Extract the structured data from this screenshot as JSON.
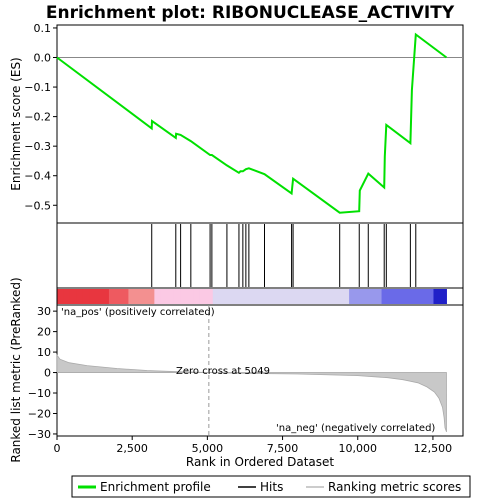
{
  "chart_data": {
    "type": "line",
    "title": "Enrichment plot: RIBONUCLEASE_ACTIVITY",
    "top_panel": {
      "ylabel": "Enrichment score (ES)",
      "ylim": [
        -0.56,
        0.11
      ],
      "yticks": [
        0.1,
        0.0,
        -0.1,
        -0.2,
        -0.3,
        -0.4,
        -0.5
      ],
      "ytick_labels": [
        "0.1",
        "0.0",
        "−0.1",
        "−0.2",
        "−0.3",
        "−0.4",
        "−0.5"
      ],
      "series": [
        {
          "name": "Enrichment profile",
          "color": "#00e000",
          "x": [
            0,
            3150,
            3160,
            3950,
            3960,
            4110,
            4450,
            5090,
            5150,
            5650,
            6050,
            6100,
            6180,
            6280,
            6380,
            6900,
            7800,
            7850,
            9400,
            10050,
            10070,
            10350,
            10880,
            10900,
            10950,
            11750,
            11800,
            11930,
            12950
          ],
          "y": [
            0.0,
            -0.24,
            -0.215,
            -0.272,
            -0.258,
            -0.262,
            -0.283,
            -0.33,
            -0.33,
            -0.365,
            -0.39,
            -0.385,
            -0.385,
            -0.378,
            -0.375,
            -0.395,
            -0.46,
            -0.41,
            -0.525,
            -0.52,
            -0.45,
            -0.393,
            -0.44,
            -0.335,
            -0.228,
            -0.29,
            -0.11,
            0.078,
            0.0
          ]
        }
      ]
    },
    "hits": [
      3150,
      3950,
      4110,
      4450,
      5090,
      5150,
      5650,
      6050,
      6180,
      6280,
      6380,
      6900,
      7800,
      7850,
      9400,
      10050,
      10350,
      10880,
      10950,
      11750,
      11930
    ],
    "hits_label": "Hits",
    "bottom_panel": {
      "ylabel": "Ranked list metric (PreRanked)",
      "xlabel": "Rank in Ordered Dataset",
      "xlim": [
        0,
        13500
      ],
      "ylim": [
        -31,
        33
      ],
      "xticks": [
        0,
        2500,
        5000,
        7500,
        10000,
        12500
      ],
      "xtick_labels": [
        "0",
        "2,500",
        "5,000",
        "7,500",
        "10,000",
        "12,500"
      ],
      "yticks": [
        30,
        20,
        10,
        0,
        -10,
        -20,
        -30
      ],
      "ytick_labels": [
        "30",
        "20",
        "10",
        "0",
        "−10",
        "−20",
        "−30"
      ],
      "metric_x": [
        0,
        100,
        400,
        1000,
        2000,
        3000,
        4000,
        5049,
        6000,
        8000,
        10000,
        11000,
        11500,
        12000,
        12300,
        12550,
        12700,
        12820,
        12870,
        12900,
        12950
      ],
      "metric_y": [
        8.5,
        6.5,
        4.8,
        3.4,
        2.0,
        1.0,
        0.4,
        0.0,
        -0.3,
        -0.7,
        -1.5,
        -2.5,
        -3.5,
        -5.0,
        -7.0,
        -9.5,
        -12.5,
        -17.0,
        -22.0,
        -27.0,
        -29.0
      ],
      "zero_cross_x": 5049,
      "annotations": {
        "pos": "'na_pos' (positively correlated)",
        "neg": "'na_neg' (negatively correlated)",
        "zero": "Zero cross at 5049"
      },
      "pos_color": "#dd0000",
      "neg_color": "#0000dd"
    },
    "legend": {
      "items": [
        {
          "label": "Enrichment profile",
          "color": "#00e000"
        },
        {
          "label": "Hits",
          "color": "#000000"
        },
        {
          "label": "Ranking metric scores",
          "color": "#bbbbbb"
        }
      ]
    },
    "grid": false
  }
}
